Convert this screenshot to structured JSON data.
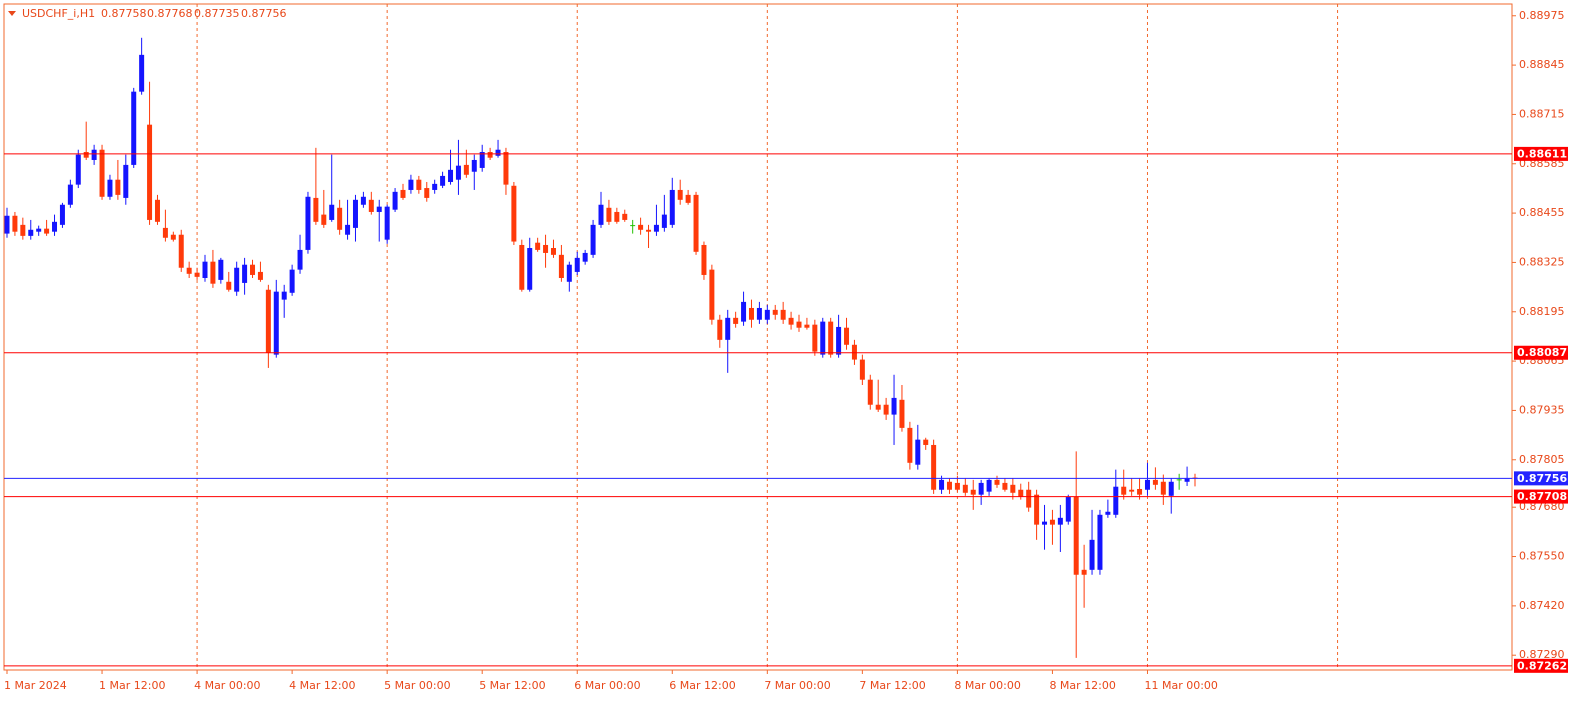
{
  "chart_data": {
    "type": "candlestick",
    "symbol": "USDCHF_i,H1",
    "categories": [
      "1 Mar 2024",
      null,
      null,
      null,
      null,
      null,
      null,
      null,
      null,
      null,
      null,
      null,
      "1 Mar 12:00",
      null,
      null,
      null,
      null,
      null,
      null,
      null,
      null,
      null,
      null,
      null,
      "4 Mar 00:00",
      null,
      null,
      null,
      null,
      null,
      null,
      null,
      null,
      null,
      null,
      null,
      "4 Mar 12:00",
      null,
      null,
      null,
      null,
      null,
      null,
      null,
      null,
      null,
      null,
      null,
      "5 Mar 00:00",
      null,
      null,
      null,
      null,
      null,
      null,
      null,
      null,
      null,
      null,
      null,
      "5 Mar 12:00",
      null,
      null,
      null,
      null,
      null,
      null,
      null,
      null,
      null,
      null,
      null,
      "6 Mar 00:00",
      null,
      null,
      null,
      null,
      null,
      null,
      null,
      null,
      null,
      null,
      null,
      "6 Mar 12:00",
      null,
      null,
      null,
      null,
      null,
      null,
      null,
      null,
      null,
      null,
      null,
      "7 Mar 00:00",
      null,
      null,
      null,
      null,
      null,
      null,
      null,
      null,
      null,
      null,
      null,
      "7 Mar 12:00",
      null,
      null,
      null,
      null,
      null,
      null,
      null,
      null,
      null,
      null,
      null,
      "8 Mar 00:00",
      null,
      null,
      null,
      null,
      null,
      null,
      null,
      null,
      null,
      null,
      null,
      "8 Mar 12:00",
      null,
      null,
      null,
      null,
      null,
      null,
      null,
      null,
      null,
      null,
      null,
      "11 Mar 00:00",
      null,
      null,
      null,
      null,
      null,
      null
    ],
    "open": [
      0.88401,
      0.88448,
      0.88424,
      0.88395,
      0.88406,
      0.88414,
      0.88406,
      0.88424,
      0.88477,
      0.8853,
      0.88616,
      0.88595,
      0.88622,
      0.88498,
      0.88543,
      0.88495,
      0.88582,
      0.88775,
      0.88688,
      0.8849,
      0.88416,
      0.88398,
      0.88398,
      0.88311,
      0.88298,
      0.88284,
      0.88327,
      0.88279,
      0.88274,
      0.88248,
      0.88271,
      0.88319,
      0.883,
      0.88253,
      0.88082,
      0.88227,
      0.88245,
      0.88306,
      0.88358,
      0.88495,
      0.88451,
      0.88437,
      0.88469,
      0.88398,
      0.88416,
      0.88477,
      0.8849,
      0.88458,
      0.88385,
      0.88464,
      0.88516,
      0.88516,
      0.88543,
      0.88521,
      0.88516,
      0.88527,
      0.88537,
      0.88543,
      0.88582,
      0.88564,
      0.88574,
      0.88616,
      0.88606,
      0.88616,
      0.88527,
      0.88371,
      0.88253,
      0.88377,
      0.88371,
      0.88363,
      0.88345,
      0.88274,
      0.883,
      0.88327,
      0.88345,
      0.88424,
      0.88469,
      0.88458,
      0.88453,
      0.88422,
      0.88424,
      0.88411,
      0.88406,
      0.88416,
      0.88424,
      0.88516,
      0.88503,
      0.88503,
      0.88371,
      0.88306,
      0.88174,
      0.88121,
      0.88179,
      0.88169,
      0.88205,
      0.88174,
      0.88174,
      0.882,
      0.882,
      0.88179,
      0.88169,
      0.88161,
      0.88161,
      0.88082,
      0.88169,
      0.88082,
      0.88153,
      0.88108,
      0.88069,
      0.88016,
      0.8795,
      0.8795,
      0.87924,
      0.87963,
      0.87889,
      0.87792,
      0.87858,
      0.87844,
      0.87726,
      0.87747,
      0.87744,
      0.87739,
      0.87726,
      0.87713,
      0.87721,
      0.87752,
      0.87744,
      0.87739,
      0.87726,
      0.87726,
      0.87713,
      0.87634,
      0.87647,
      0.87634,
      0.87642,
      0.87707,
      0.87515,
      0.87515,
      0.87515,
      0.8766,
      0.8766,
      0.87734,
      0.87726,
      0.87728,
      0.87726,
      0.87752,
      0.87747,
      0.8771,
      0.87752,
      0.87747,
      0.87758
    ],
    "high": [
      0.88469,
      0.88458,
      0.88443,
      0.88437,
      0.88422,
      0.88437,
      0.88451,
      0.88482,
      0.88543,
      0.88622,
      0.88696,
      0.88635,
      0.88635,
      0.88556,
      0.88595,
      0.88609,
      0.88785,
      0.88917,
      0.88801,
      0.88503,
      0.88464,
      0.88406,
      0.88411,
      0.88327,
      0.88311,
      0.88345,
      0.88358,
      0.88337,
      0.883,
      0.88327,
      0.88337,
      0.88332,
      0.88327,
      0.88266,
      0.88279,
      0.88266,
      0.88319,
      0.88398,
      0.88511,
      0.88627,
      0.88516,
      0.88609,
      0.8849,
      0.8849,
      0.88503,
      0.88511,
      0.88511,
      0.8849,
      0.88477,
      0.88521,
      0.88532,
      0.88556,
      0.88553,
      0.88537,
      0.88543,
      0.88564,
      0.88622,
      0.88648,
      0.88622,
      0.88609,
      0.88635,
      0.88627,
      0.88648,
      0.88627,
      0.88537,
      0.88385,
      0.8839,
      0.8839,
      0.88398,
      0.88385,
      0.88371,
      0.88327,
      0.88353,
      0.88358,
      0.88437,
      0.88511,
      0.8849,
      0.88469,
      0.88464,
      0.88437,
      0.88443,
      0.88424,
      0.88477,
      0.88503,
      0.88548,
      0.88543,
      0.88516,
      0.88511,
      0.8838,
      0.88319,
      0.88187,
      0.882,
      0.88195,
      0.88248,
      0.88227,
      0.88221,
      0.88213,
      0.88213,
      0.88221,
      0.88195,
      0.88187,
      0.88179,
      0.88174,
      0.88179,
      0.88179,
      0.88187,
      0.88179,
      0.88121,
      0.88082,
      0.88029,
      0.88016,
      0.87968,
      0.88029,
      0.88002,
      0.87905,
      0.87897,
      0.87863,
      0.87858,
      0.87763,
      0.87757,
      0.87763,
      0.87757,
      0.87752,
      0.87752,
      0.87757,
      0.87763,
      0.87757,
      0.87757,
      0.87742,
      0.87747,
      0.87726,
      0.87686,
      0.87673,
      0.87686,
      0.87713,
      0.87827,
      0.87581,
      0.87673,
      0.87673,
      0.877,
      0.87779,
      0.87779,
      0.87757,
      0.87757,
      0.87797,
      0.87785,
      0.87766,
      0.87757,
      0.87768,
      0.87787,
      0.87768
    ],
    "low": [
      0.8839,
      0.88395,
      0.88385,
      0.88385,
      0.88395,
      0.88395,
      0.88395,
      0.88416,
      0.88469,
      0.88521,
      0.88595,
      0.88582,
      0.8849,
      0.8849,
      0.8849,
      0.88477,
      0.88574,
      0.88767,
      0.88424,
      0.88424,
      0.8838,
      0.8838,
      0.883,
      0.88284,
      0.88279,
      0.88274,
      0.88258,
      0.88269,
      0.88248,
      0.88237,
      0.8824,
      0.88284,
      0.88274,
      0.88047,
      0.88074,
      0.88179,
      0.88237,
      0.88295,
      0.88348,
      0.88424,
      0.88416,
      0.88432,
      0.88398,
      0.88385,
      0.8838,
      0.88469,
      0.88451,
      0.8838,
      0.88374,
      0.88458,
      0.8849,
      0.88506,
      0.88506,
      0.88485,
      0.88506,
      0.88521,
      0.8853,
      0.88503,
      0.88548,
      0.88516,
      0.88564,
      0.88595,
      0.88601,
      0.88503,
      0.88371,
      0.88248,
      0.88248,
      0.88353,
      0.88311,
      0.88337,
      0.88274,
      0.88248,
      0.88292,
      0.88319,
      0.88337,
      0.88416,
      0.88424,
      0.88427,
      0.88432,
      0.88401,
      0.88398,
      0.88363,
      0.88395,
      0.88406,
      0.88416,
      0.88477,
      0.88477,
      0.88345,
      0.88279,
      0.88161,
      0.881,
      0.88034,
      0.88153,
      0.88158,
      0.88153,
      0.88163,
      0.88163,
      0.88174,
      0.88163,
      0.88148,
      0.88142,
      0.88148,
      0.88079,
      0.88074,
      0.88074,
      0.88074,
      0.88095,
      0.88055,
      0.88002,
      0.87937,
      0.87931,
      0.8791,
      0.87844,
      0.87879,
      0.87779,
      0.87779,
      0.87831,
      0.87715,
      0.87715,
      0.87715,
      0.87721,
      0.8771,
      0.87673,
      0.87686,
      0.8771,
      0.87731,
      0.87721,
      0.877,
      0.877,
      0.87668,
      0.87594,
      0.87568,
      0.87581,
      0.87562,
      0.87634,
      0.87283,
      0.87415,
      0.87502,
      0.87502,
      0.87652,
      0.87652,
      0.877,
      0.8771,
      0.877,
      0.8771,
      0.87726,
      0.87686,
      0.87663,
      0.87726,
      0.87736,
      0.87735
    ],
    "close": [
      0.88448,
      0.88406,
      0.88395,
      0.88411,
      0.88414,
      0.88401,
      0.88432,
      0.88477,
      0.8853,
      0.88609,
      0.88601,
      0.88622,
      0.88498,
      0.88543,
      0.88503,
      0.88582,
      0.88775,
      0.88872,
      0.88437,
      0.88432,
      0.8839,
      0.88385,
      0.88311,
      0.88295,
      0.88287,
      0.88327,
      0.88269,
      0.88332,
      0.88253,
      0.88311,
      0.88319,
      0.88292,
      0.88279,
      0.88087,
      0.88248,
      0.88248,
      0.88306,
      0.88358,
      0.88498,
      0.88432,
      0.88424,
      0.88477,
      0.88411,
      0.88424,
      0.8849,
      0.88498,
      0.88458,
      0.88472,
      0.88472,
      0.88511,
      0.88495,
      0.88543,
      0.88516,
      0.88495,
      0.88532,
      0.88553,
      0.88569,
      0.8858,
      0.88556,
      0.88595,
      0.88616,
      0.88601,
      0.88622,
      0.8853,
      0.8838,
      0.88253,
      0.88363,
      0.88358,
      0.8835,
      0.88345,
      0.88284,
      0.88319,
      0.88337,
      0.8835,
      0.88424,
      0.88477,
      0.88432,
      0.88432,
      0.88437,
      0.88422,
      0.88411,
      0.88406,
      0.88424,
      0.88451,
      0.88516,
      0.8849,
      0.88482,
      0.88353,
      0.88292,
      0.88174,
      0.88121,
      0.88179,
      0.88163,
      0.88221,
      0.88174,
      0.88205,
      0.882,
      0.88187,
      0.88174,
      0.88161,
      0.88153,
      0.88153,
      0.8809,
      0.88169,
      0.88082,
      0.88155,
      0.88108,
      0.88069,
      0.88016,
      0.8795,
      0.87937,
      0.87924,
      0.87968,
      0.87889,
      0.87797,
      0.87858,
      0.87844,
      0.87726,
      0.87752,
      0.87726,
      0.87726,
      0.87718,
      0.87713,
      0.87744,
      0.87752,
      0.87739,
      0.87726,
      0.87718,
      0.87707,
      0.87679,
      0.87634,
      0.87642,
      0.87634,
      0.87652,
      0.87707,
      0.87502,
      0.87502,
      0.87594,
      0.8766,
      0.87668,
      0.87734,
      0.87713,
      0.87721,
      0.87713,
      0.87752,
      0.87739,
      0.87713,
      0.87747,
      0.87752,
      0.87757,
      0.87756
    ],
    "up_color": "#1414ff",
    "down_color": "#ff3a0a",
    "doji_color": "#22c000",
    "ylim": [
      0.87251,
      0.89006
    ],
    "yticks": [
      0.88975,
      0.88845,
      0.88715,
      0.88585,
      0.88455,
      0.88325,
      0.88195,
      0.88065,
      0.87935,
      0.87805,
      {
        "value": 0.8768,
        "label": "0.87680"
      },
      {
        "value": 0.8755,
        "label": "0.87550"
      },
      {
        "value": 0.8742,
        "label": "0.87420"
      },
      {
        "value": 0.8729,
        "label": "0.87290"
      }
    ],
    "hlines": [
      {
        "value": 0.88611,
        "color": "#ff0000"
      },
      {
        "value": 0.88087,
        "color": "#ff0000"
      },
      {
        "value": 0.87756,
        "color": "#2323ff"
      },
      {
        "value": 0.87708,
        "color": "#ff0000"
      },
      {
        "value": 0.87262,
        "color": "#ff0000"
      }
    ],
    "period_separators": true
  }
}
